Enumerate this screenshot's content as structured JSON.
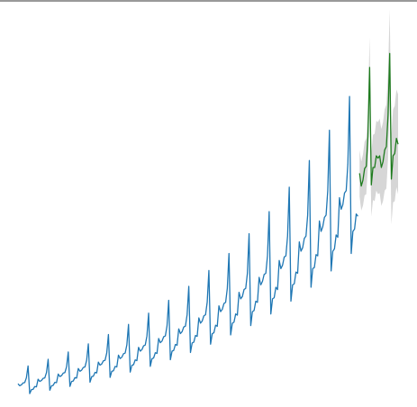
{
  "chart_data": {
    "type": "line",
    "xlim": [
      0,
      227
    ],
    "ylim": [
      1.4,
      36.4
    ],
    "series": [
      {
        "color": "#1f77b4",
        "values": [
          3.4,
          3.23,
          3.3,
          3.47,
          3.5,
          3.91,
          4.93,
          2.55,
          2.89,
          2.92,
          3.16,
          3.13,
          3.79,
          3.6,
          3.68,
          3.87,
          3.9,
          4.36,
          5.5,
          2.84,
          3.22,
          3.26,
          3.52,
          3.49,
          4.23,
          4.02,
          4.1,
          4.31,
          4.36,
          4.86,
          6.13,
          3.17,
          3.6,
          3.64,
          3.93,
          3.89,
          4.71,
          4.47,
          4.57,
          4.8,
          4.85,
          5.42,
          6.83,
          3.53,
          4.0,
          4.05,
          4.38,
          4.33,
          5.26,
          5.0,
          5.1,
          5.37,
          5.42,
          6.05,
          7.63,
          3.95,
          4.47,
          4.52,
          4.89,
          4.84,
          5.86,
          5.57,
          5.68,
          5.98,
          6.04,
          6.74,
          8.5,
          4.4,
          4.98,
          5.04,
          5.45,
          5.39,
          6.53,
          6.2,
          6.33,
          6.66,
          6.73,
          7.51,
          9.47,
          4.9,
          5.55,
          5.62,
          6.07,
          6.01,
          7.29,
          6.93,
          7.07,
          7.44,
          7.51,
          8.38,
          10.57,
          5.47,
          6.2,
          6.27,
          6.78,
          6.71,
          8.12,
          7.71,
          7.88,
          8.28,
          8.36,
          9.34,
          11.77,
          6.09,
          6.9,
          6.98,
          7.55,
          7.47,
          9.06,
          8.61,
          8.79,
          9.24,
          9.33,
          10.42,
          13.14,
          6.8,
          7.7,
          7.79,
          8.43,
          8.34,
          10.1,
          9.6,
          9.8,
          10.3,
          10.4,
          11.6,
          14.6,
          7.6,
          8.6,
          8.7,
          9.4,
          9.3,
          11.26,
          10.7,
          10.9,
          11.5,
          11.6,
          12.9,
          16.3,
          8.4,
          9.6,
          9.7,
          10.5,
          10.4,
          12.55,
          11.9,
          12.2,
          12.8,
          12.9,
          14.4,
          18.2,
          9.4,
          10.7,
          10.8,
          11.7,
          11.5,
          14.0,
          13.3,
          13.6,
          14.3,
          14.4,
          16.1,
          20.3,
          10.5,
          11.9,
          12.0,
          13.0,
          12.9,
          15.6,
          14.8,
          15.1,
          15.9,
          16.1,
          17.9,
          22.6,
          11.7,
          13.3,
          13.4,
          14.5,
          14.4,
          17.4,
          16.5,
          16.9,
          17.7,
          17.9,
          20.0,
          25.2,
          13.1,
          14.8,
          15.0,
          16.2,
          16.0,
          19.4,
          18.4,
          18.8,
          19.8,
          20.0,
          22.3,
          28.1,
          14.6,
          16.5,
          16.7,
          18.0,
          17.8
        ]
      },
      {
        "color": "#1e7b1e",
        "band_color": "#c8c8c8",
        "x": [
          204,
          205,
          206,
          207,
          208,
          209,
          210,
          211,
          212,
          213,
          214,
          215,
          216,
          217,
          218,
          219,
          220,
          221,
          222,
          223,
          224,
          225,
          226,
          227
        ],
        "values": [
          21.5,
          20.4,
          20.9,
          21.9,
          22.1,
          24.7,
          30.6,
          20.5,
          22.0,
          22.0,
          23.0,
          22.8,
          23.0,
          22.0,
          22.5,
          23.5,
          23.8,
          26.5,
          31.8,
          21.0,
          23.0,
          23.2,
          24.5,
          24.0
        ],
        "lower": [
          19.5,
          18.3,
          18.7,
          19.6,
          19.7,
          22.2,
          28.0,
          17.8,
          19.2,
          19.1,
          20.0,
          19.7,
          19.8,
          18.7,
          19.1,
          20.0,
          20.2,
          22.8,
          28.0,
          17.1,
          19.0,
          19.1,
          20.3,
          19.7
        ],
        "upper": [
          23.5,
          22.5,
          23.1,
          24.2,
          24.5,
          27.2,
          33.2,
          23.2,
          24.8,
          24.9,
          26.0,
          25.9,
          26.2,
          25.3,
          25.9,
          27.0,
          27.4,
          30.2,
          35.6,
          24.9,
          27.0,
          27.3,
          28.7,
          28.3
        ]
      }
    ]
  }
}
